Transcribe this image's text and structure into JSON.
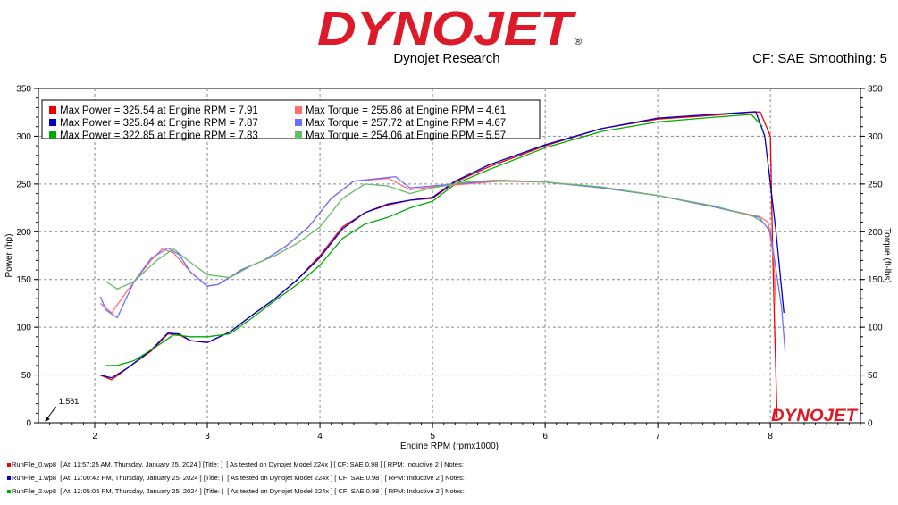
{
  "header": {
    "logo_text": "DYNOJET",
    "logo_mark": "®",
    "subtitle": "Dynojet Research",
    "cf_text": "CF: SAE Smoothing: 5"
  },
  "colors": {
    "brand_red": "#dd1a2a",
    "run0": "#ee0000",
    "run0_torque": "#ff6f6f",
    "run1": "#0000cc",
    "run1_torque": "#6f6fff",
    "run2": "#00aa00",
    "run2_torque": "#66bb66"
  },
  "chart_data": {
    "type": "line",
    "xlabel": "Engine RPM (rpmx1000)",
    "ylabel": "Power (hp)",
    "y2label": "Torque (ft-lbs)",
    "xlim": [
      1.5,
      8.8
    ],
    "ylim": [
      0,
      350
    ],
    "y2lim": [
      0,
      350
    ],
    "x_ticks": [
      "2",
      "3",
      "4",
      "5",
      "6",
      "7",
      "8"
    ],
    "y_ticks": [
      "0",
      "50",
      "100",
      "150",
      "200",
      "250",
      "300",
      "350"
    ],
    "cursor_label": "1.561",
    "grid": true,
    "legend_position": "top-left",
    "legend": [
      "Max Power = 325.54 at Engine RPM = 7.91",
      "Max Torque = 255.86 at Engine RPM = 4.61",
      "Max Power = 325.84 at Engine RPM = 7.87",
      "Max Torque = 257.72 at Engine RPM = 4.67",
      "Max Power = 322.85 at Engine RPM = 7.83",
      "Max Torque = 254.06 at Engine RPM = 5.57"
    ],
    "watermark": "DYNOJET",
    "series": [
      {
        "color": "#ee0000",
        "axis": "power",
        "x": [
          2.05,
          2.15,
          2.3,
          2.5,
          2.65,
          2.75,
          2.85,
          3.0,
          3.2,
          3.4,
          3.6,
          3.8,
          4.0,
          4.2,
          4.4,
          4.6,
          4.8,
          5.0,
          5.2,
          5.5,
          6.0,
          6.5,
          7.0,
          7.5,
          7.8,
          7.91,
          8.0,
          8.02,
          8.04,
          8.06
        ],
        "y": [
          50,
          45,
          58,
          75,
          93,
          92,
          86,
          84,
          95,
          113,
          130,
          150,
          175,
          205,
          220,
          228,
          233,
          235,
          252,
          268,
          290,
          308,
          318,
          322,
          325,
          325.5,
          300,
          180,
          90,
          5
        ]
      },
      {
        "color": "#0000cc",
        "axis": "power",
        "x": [
          2.05,
          2.15,
          2.3,
          2.5,
          2.65,
          2.75,
          2.85,
          3.0,
          3.2,
          3.4,
          3.6,
          3.8,
          4.0,
          4.2,
          4.4,
          4.6,
          4.8,
          5.0,
          5.2,
          5.5,
          6.0,
          6.5,
          7.0,
          7.5,
          7.87,
          7.95,
          8.05,
          8.12
        ],
        "y": [
          50,
          47,
          58,
          76,
          94,
          93,
          86,
          84,
          95,
          113,
          130,
          150,
          173,
          203,
          220,
          229,
          233,
          236,
          253,
          270,
          291,
          308,
          319,
          323,
          325.8,
          300,
          200,
          115
        ]
      },
      {
        "color": "#00aa00",
        "axis": "power",
        "x": [
          2.1,
          2.2,
          2.35,
          2.55,
          2.7,
          2.85,
          3.0,
          3.2,
          3.4,
          3.6,
          3.8,
          4.0,
          4.2,
          4.4,
          4.6,
          4.8,
          5.0,
          5.2,
          5.5,
          6.0,
          6.5,
          7.0,
          7.5,
          7.83,
          7.93
        ],
        "y": [
          60,
          60,
          65,
          80,
          92,
          90,
          90,
          93,
          110,
          128,
          145,
          165,
          193,
          208,
          215,
          225,
          232,
          250,
          265,
          288,
          305,
          315,
          320,
          322.9,
          310
        ]
      },
      {
        "color": "#ff6f6f",
        "axis": "torque",
        "x": [
          2.05,
          2.15,
          2.3,
          2.5,
          2.6,
          2.7,
          2.85,
          3.0,
          3.1,
          3.3,
          3.5,
          3.7,
          3.9,
          4.1,
          4.3,
          4.61,
          4.8,
          5.0,
          5.3,
          5.6,
          6.0,
          6.5,
          7.0,
          7.5,
          7.9,
          7.98,
          8.03,
          8.05
        ],
        "y": [
          125,
          115,
          140,
          170,
          182,
          178,
          158,
          143,
          145,
          160,
          170,
          185,
          205,
          235,
          253,
          255.9,
          244,
          247,
          250,
          253,
          252,
          246,
          238,
          226,
          216,
          210,
          170,
          120
        ]
      },
      {
        "color": "#6f6fff",
        "axis": "torque",
        "x": [
          2.05,
          2.1,
          2.2,
          2.35,
          2.5,
          2.65,
          2.75,
          2.85,
          3.0,
          3.1,
          3.3,
          3.5,
          3.7,
          3.9,
          4.1,
          4.3,
          4.67,
          4.8,
          5.0,
          5.3,
          5.6,
          6.0,
          6.5,
          7.0,
          7.5,
          7.9,
          8.0,
          8.1,
          8.13
        ],
        "y": [
          132,
          118,
          110,
          148,
          172,
          183,
          176,
          158,
          143,
          145,
          160,
          170,
          185,
          205,
          235,
          253,
          257.7,
          246,
          248,
          251,
          254,
          252,
          246,
          238,
          226,
          215,
          200,
          120,
          75
        ]
      },
      {
        "color": "#66bb66",
        "axis": "torque",
        "x": [
          2.1,
          2.2,
          2.35,
          2.55,
          2.7,
          2.85,
          3.0,
          3.2,
          3.4,
          3.6,
          3.8,
          4.0,
          4.2,
          4.4,
          4.6,
          4.8,
          5.0,
          5.3,
          5.57,
          6.0,
          6.5,
          7.0,
          7.5,
          7.85,
          7.93
        ],
        "y": [
          148,
          140,
          148,
          170,
          182,
          168,
          155,
          152,
          165,
          175,
          188,
          205,
          235,
          250,
          248,
          240,
          246,
          252,
          254.1,
          252,
          247,
          238,
          227,
          216,
          210
        ]
      }
    ]
  },
  "footer": {
    "runs": [
      "RunFile_0.wp8  [ At: 11:57:25 AM, Thursday, January 25, 2024 ] [Title: ]  [ As tested on Dynojet Model 224x ] [ CF: SAE 0.98 ] [ RPM: Inductive 2 ] Notes:",
      "RunFile_1.wp8  [ At: 12:00:42 PM, Thursday, January 25, 2024 ] [Title: ]  [ As tested on Dynojet Model 224x ] [ CF: SAE 0.98 ] [ RPM: Inductive 2 ] Notes:",
      "RunFile_2.wp8  [ At: 12:05:05 PM, Thursday, January 25, 2024 ] [Title: ]  [ As tested on Dynojet Model 224x ] [ CF: SAE 0.98 ] [ RPM: Inductive 2 ] Notes:"
    ]
  }
}
